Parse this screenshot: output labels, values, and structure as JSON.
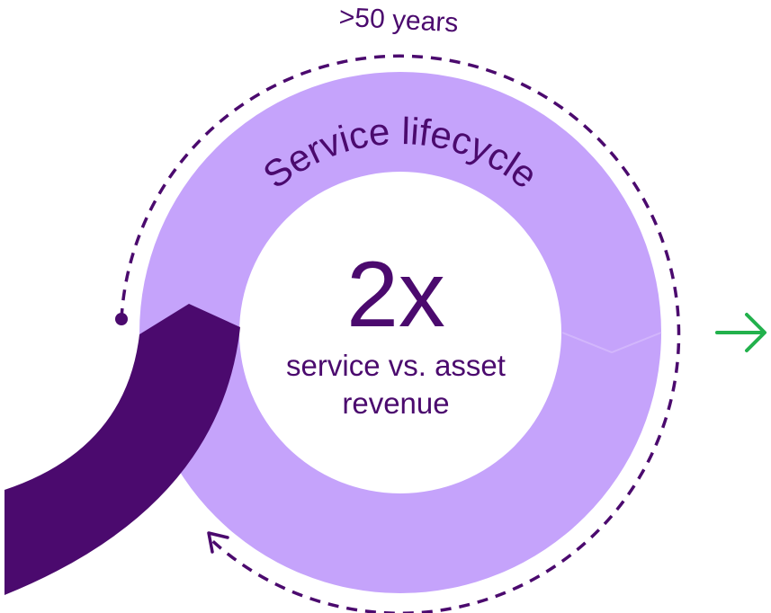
{
  "top_label": ">50 years",
  "ring_label": "Service lifecycle",
  "center": {
    "value": "2x",
    "caption_lines": [
      "service vs. asset",
      "revenue"
    ]
  }
}
